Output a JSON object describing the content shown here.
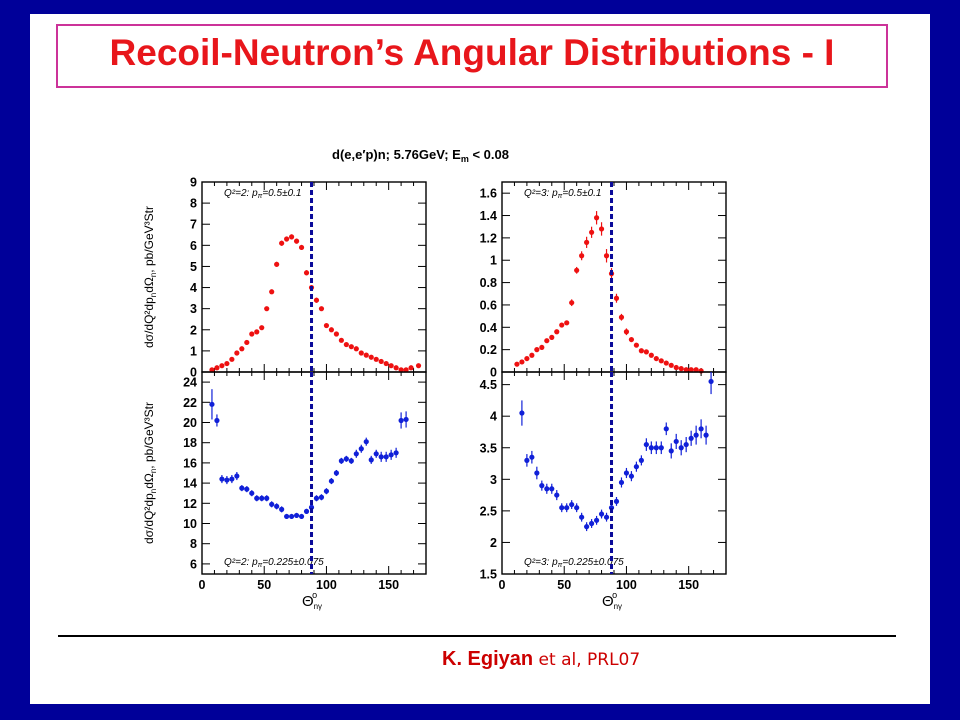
{
  "slide": {
    "title": "Recoil-Neutron’s Angular Distributions - I",
    "citation_author": "K. Egiyan",
    "citation_ref": " et al, PRL07"
  },
  "figure": {
    "title": "d(e,e′p)n; 5.76GeV; E",
    "title_sub": "m",
    "title_tail": " < 0.08",
    "xlabel": "Θ",
    "xlabel_sub": "nγ",
    "xlabel_sup": "o",
    "ylabel": "dσ/dQ²dp",
    "ylabel_tail": "dΩ",
    "ylabel_units": ", pb/GeV³Str",
    "cut_line_x": 88,
    "colors": {
      "red": "#ee1111",
      "blue": "#1020d8",
      "cut": "#0a0a9a"
    }
  },
  "chart_data": [
    {
      "type": "scatter",
      "panel": "top-left",
      "annotation": "Q²=2:  p",
      "annotation_tail": "=0.5±0.1",
      "color": "red",
      "xlim": [
        0,
        180
      ],
      "ylim": [
        0,
        9
      ],
      "xticks": [],
      "yticks": [
        0,
        1,
        2,
        3,
        4,
        5,
        6,
        7,
        8,
        9
      ],
      "points": [
        [
          8,
          0.1,
          0.05
        ],
        [
          12,
          0.2,
          0.05
        ],
        [
          16,
          0.3,
          0.05
        ],
        [
          20,
          0.4,
          0.05
        ],
        [
          24,
          0.6,
          0.05
        ],
        [
          28,
          0.9,
          0.05
        ],
        [
          32,
          1.1,
          0.06
        ],
        [
          36,
          1.4,
          0.06
        ],
        [
          40,
          1.8,
          0.08
        ],
        [
          44,
          1.9,
          0.08
        ],
        [
          48,
          2.1,
          0.08
        ],
        [
          52,
          3.0,
          0.1
        ],
        [
          56,
          3.8,
          0.1
        ],
        [
          60,
          5.1,
          0.12
        ],
        [
          64,
          6.1,
          0.12
        ],
        [
          68,
          6.3,
          0.12
        ],
        [
          72,
          6.4,
          0.12
        ],
        [
          76,
          6.2,
          0.12
        ],
        [
          80,
          5.9,
          0.12
        ],
        [
          84,
          4.7,
          0.12
        ],
        [
          88,
          4.0,
          0.12
        ],
        [
          92,
          3.4,
          0.12
        ],
        [
          96,
          3.0,
          0.1
        ],
        [
          100,
          2.2,
          0.1
        ],
        [
          104,
          2.0,
          0.1
        ],
        [
          108,
          1.8,
          0.08
        ],
        [
          112,
          1.5,
          0.08
        ],
        [
          116,
          1.3,
          0.08
        ],
        [
          120,
          1.2,
          0.08
        ],
        [
          124,
          1.1,
          0.08
        ],
        [
          128,
          0.9,
          0.06
        ],
        [
          132,
          0.8,
          0.06
        ],
        [
          136,
          0.7,
          0.06
        ],
        [
          140,
          0.6,
          0.06
        ],
        [
          144,
          0.5,
          0.06
        ],
        [
          148,
          0.4,
          0.06
        ],
        [
          152,
          0.3,
          0.06
        ],
        [
          156,
          0.2,
          0.06
        ],
        [
          160,
          0.1,
          0.06
        ],
        [
          164,
          0.1,
          0.06
        ],
        [
          168,
          0.2,
          0.06
        ],
        [
          174,
          0.3,
          0.1
        ]
      ]
    },
    {
      "type": "scatter",
      "panel": "top-right",
      "annotation": "Q²=3:  p",
      "annotation_tail": "=0.5±0.1",
      "color": "red",
      "xlim": [
        0,
        180
      ],
      "ylim": [
        0,
        1.7
      ],
      "xticks": [],
      "yticks": [
        "0",
        "0.2",
        "0.4",
        "0.6",
        "0.8",
        "1",
        "1.2",
        "1.4",
        "1.6"
      ],
      "points": [
        [
          12,
          0.07,
          0.01
        ],
        [
          16,
          0.09,
          0.01
        ],
        [
          20,
          0.12,
          0.01
        ],
        [
          24,
          0.15,
          0.01
        ],
        [
          28,
          0.2,
          0.015
        ],
        [
          32,
          0.22,
          0.015
        ],
        [
          36,
          0.28,
          0.015
        ],
        [
          40,
          0.31,
          0.02
        ],
        [
          44,
          0.36,
          0.02
        ],
        [
          48,
          0.42,
          0.02
        ],
        [
          52,
          0.44,
          0.02
        ],
        [
          56,
          0.62,
          0.03
        ],
        [
          60,
          0.91,
          0.03
        ],
        [
          64,
          1.04,
          0.04
        ],
        [
          68,
          1.16,
          0.05
        ],
        [
          72,
          1.25,
          0.05
        ],
        [
          76,
          1.38,
          0.06
        ],
        [
          80,
          1.28,
          0.06
        ],
        [
          84,
          1.04,
          0.06
        ],
        [
          88,
          0.88,
          0.05
        ],
        [
          92,
          0.66,
          0.04
        ],
        [
          96,
          0.49,
          0.03
        ],
        [
          100,
          0.36,
          0.03
        ],
        [
          104,
          0.29,
          0.02
        ],
        [
          108,
          0.24,
          0.02
        ],
        [
          112,
          0.19,
          0.02
        ],
        [
          116,
          0.18,
          0.02
        ],
        [
          120,
          0.15,
          0.02
        ],
        [
          124,
          0.12,
          0.02
        ],
        [
          128,
          0.1,
          0.02
        ],
        [
          132,
          0.08,
          0.02
        ],
        [
          136,
          0.06,
          0.02
        ],
        [
          140,
          0.04,
          0.02
        ],
        [
          144,
          0.03,
          0.02
        ],
        [
          148,
          0.02,
          0.02
        ],
        [
          152,
          0.02,
          0.02
        ],
        [
          156,
          0.02,
          0.02
        ],
        [
          160,
          0.01,
          0.02
        ]
      ]
    },
    {
      "type": "scatter",
      "panel": "bottom-left",
      "annotation": "Q²=2:  p",
      "annotation_tail": "=0.225±0.075",
      "color": "blue",
      "xlim": [
        0,
        180
      ],
      "ylim": [
        5,
        25
      ],
      "xticks": [
        "0",
        "50",
        "100",
        "150"
      ],
      "yticks": [
        6,
        8,
        10,
        12,
        14,
        16,
        18,
        20,
        22,
        24
      ],
      "points": [
        [
          8,
          21.8,
          1.5
        ],
        [
          12,
          20.2,
          0.6
        ],
        [
          16,
          14.4,
          0.4
        ],
        [
          20,
          14.3,
          0.4
        ],
        [
          24,
          14.4,
          0.4
        ],
        [
          28,
          14.7,
          0.4
        ],
        [
          32,
          13.5,
          0.3
        ],
        [
          36,
          13.4,
          0.3
        ],
        [
          40,
          13.0,
          0.3
        ],
        [
          44,
          12.5,
          0.3
        ],
        [
          48,
          12.5,
          0.3
        ],
        [
          52,
          12.5,
          0.3
        ],
        [
          56,
          11.9,
          0.3
        ],
        [
          60,
          11.7,
          0.3
        ],
        [
          64,
          11.4,
          0.3
        ],
        [
          68,
          10.7,
          0.25
        ],
        [
          72,
          10.7,
          0.25
        ],
        [
          76,
          10.8,
          0.25
        ],
        [
          80,
          10.7,
          0.25
        ],
        [
          84,
          11.2,
          0.25
        ],
        [
          88,
          11.6,
          0.3
        ],
        [
          92,
          12.5,
          0.3
        ],
        [
          96,
          12.6,
          0.3
        ],
        [
          100,
          13.2,
          0.3
        ],
        [
          104,
          14.2,
          0.3
        ],
        [
          108,
          15.0,
          0.3
        ],
        [
          112,
          16.2,
          0.3
        ],
        [
          116,
          16.4,
          0.3
        ],
        [
          120,
          16.2,
          0.3
        ],
        [
          124,
          16.9,
          0.4
        ],
        [
          128,
          17.4,
          0.4
        ],
        [
          132,
          18.1,
          0.4
        ],
        [
          136,
          16.3,
          0.4
        ],
        [
          140,
          16.9,
          0.4
        ],
        [
          144,
          16.6,
          0.5
        ],
        [
          148,
          16.6,
          0.5
        ],
        [
          152,
          16.8,
          0.5
        ],
        [
          156,
          17.0,
          0.5
        ],
        [
          160,
          20.2,
          0.8
        ],
        [
          164,
          20.3,
          0.8
        ]
      ]
    },
    {
      "type": "scatter",
      "panel": "bottom-right",
      "annotation": "Q²=3:  p",
      "annotation_tail": "=0.225±0.075",
      "color": "blue",
      "xlim": [
        0,
        180
      ],
      "ylim": [
        1.5,
        4.7
      ],
      "xticks": [
        "0",
        "50",
        "100",
        "150"
      ],
      "yticks": [
        "1.5",
        "2",
        "2.5",
        "3",
        "3.5",
        "4",
        "4.5"
      ],
      "points": [
        [
          16,
          4.05,
          0.2
        ],
        [
          20,
          3.3,
          0.1
        ],
        [
          24,
          3.35,
          0.1
        ],
        [
          28,
          3.1,
          0.1
        ],
        [
          32,
          2.9,
          0.08
        ],
        [
          36,
          2.85,
          0.08
        ],
        [
          40,
          2.85,
          0.08
        ],
        [
          44,
          2.75,
          0.08
        ],
        [
          48,
          2.55,
          0.07
        ],
        [
          52,
          2.55,
          0.07
        ],
        [
          56,
          2.6,
          0.07
        ],
        [
          60,
          2.55,
          0.07
        ],
        [
          64,
          2.4,
          0.07
        ],
        [
          68,
          2.25,
          0.07
        ],
        [
          72,
          2.3,
          0.07
        ],
        [
          76,
          2.35,
          0.07
        ],
        [
          80,
          2.45,
          0.07
        ],
        [
          84,
          2.4,
          0.07
        ],
        [
          88,
          2.55,
          0.07
        ],
        [
          92,
          2.65,
          0.07
        ],
        [
          96,
          2.95,
          0.08
        ],
        [
          100,
          3.1,
          0.08
        ],
        [
          104,
          3.05,
          0.08
        ],
        [
          108,
          3.2,
          0.08
        ],
        [
          112,
          3.3,
          0.08
        ],
        [
          116,
          3.55,
          0.1
        ],
        [
          120,
          3.5,
          0.1
        ],
        [
          124,
          3.5,
          0.1
        ],
        [
          128,
          3.5,
          0.1
        ],
        [
          132,
          3.8,
          0.1
        ],
        [
          136,
          3.45,
          0.12
        ],
        [
          140,
          3.6,
          0.12
        ],
        [
          144,
          3.5,
          0.12
        ],
        [
          148,
          3.55,
          0.12
        ],
        [
          152,
          3.65,
          0.12
        ],
        [
          156,
          3.7,
          0.15
        ],
        [
          160,
          3.8,
          0.15
        ],
        [
          164,
          3.7,
          0.15
        ],
        [
          168,
          4.55,
          0.2
        ]
      ]
    }
  ]
}
